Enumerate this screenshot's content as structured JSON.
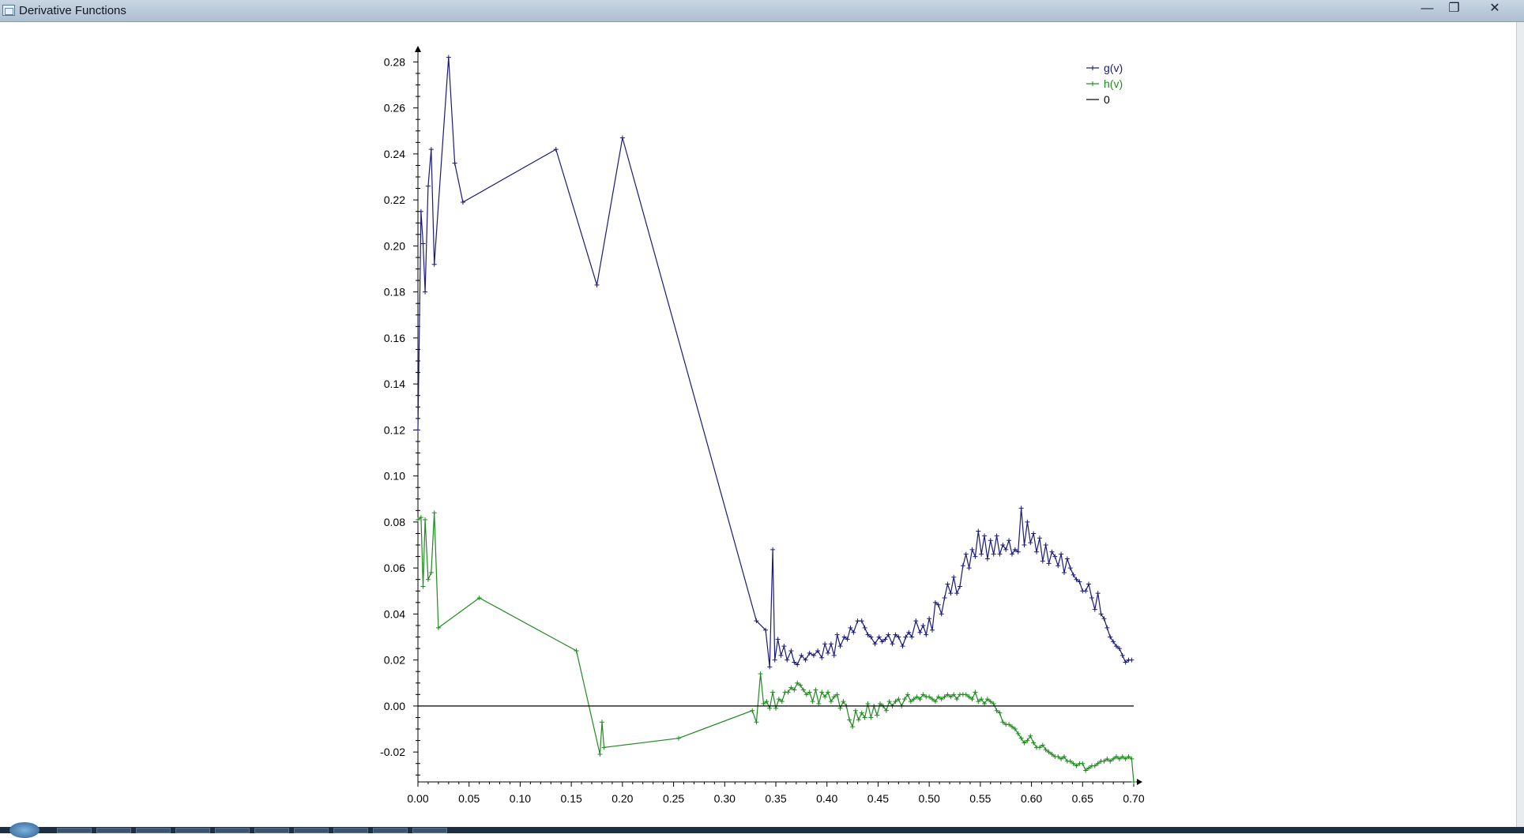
{
  "window": {
    "title": "Derivative Functions",
    "minimize_label": "—",
    "restore_label": "❐",
    "close_label": "✕"
  },
  "chart_data": {
    "type": "line",
    "title": "",
    "xlabel": "",
    "ylabel": "",
    "xlim": [
      0.0,
      0.7
    ],
    "ylim": [
      -0.033,
      0.287
    ],
    "x_ticks": [
      "0.00",
      "0.05",
      "0.10",
      "0.15",
      "0.20",
      "0.25",
      "0.30",
      "0.35",
      "0.40",
      "0.45",
      "0.50",
      "0.55",
      "0.60",
      "0.65",
      "0.70"
    ],
    "y_ticks": [
      "-0.02",
      "0.00",
      "0.02",
      "0.04",
      "0.06",
      "0.08",
      "0.10",
      "0.12",
      "0.14",
      "0.16",
      "0.18",
      "0.20",
      "0.22",
      "0.24",
      "0.26",
      "0.28"
    ],
    "legend_position": "top-right",
    "legend": [
      {
        "label": "g(v)",
        "color": "#1a1a7a"
      },
      {
        "label": "h(v)",
        "color": "#1f8a1f"
      },
      {
        "label": "0",
        "color": "#000000"
      }
    ],
    "series": [
      {
        "name": "g(v)",
        "color": "#1a1a7a",
        "x": [
          0.0,
          0.003,
          0.005,
          0.007,
          0.01,
          0.013,
          0.016,
          0.03,
          0.036,
          0.044,
          0.135,
          0.175,
          0.2,
          0.331,
          0.34,
          0.344,
          0.347,
          0.349,
          0.352,
          0.355,
          0.358,
          0.361,
          0.365,
          0.368,
          0.371,
          0.375,
          0.379,
          0.383,
          0.387,
          0.391,
          0.395,
          0.398,
          0.401,
          0.404,
          0.407,
          0.41,
          0.413,
          0.417,
          0.42,
          0.423,
          0.426,
          0.43,
          0.434,
          0.437,
          0.44,
          0.443,
          0.447,
          0.451,
          0.454,
          0.457,
          0.46,
          0.464,
          0.467,
          0.47,
          0.474,
          0.477,
          0.48,
          0.483,
          0.487,
          0.491,
          0.494,
          0.497,
          0.5,
          0.503,
          0.506,
          0.509,
          0.512,
          0.515,
          0.518,
          0.521,
          0.524,
          0.527,
          0.53,
          0.533,
          0.536,
          0.539,
          0.542,
          0.545,
          0.548,
          0.551,
          0.554,
          0.557,
          0.56,
          0.563,
          0.566,
          0.569,
          0.572,
          0.575,
          0.578,
          0.581,
          0.584,
          0.587,
          0.59,
          0.593,
          0.596,
          0.599,
          0.602,
          0.605,
          0.608,
          0.611,
          0.614,
          0.617,
          0.62,
          0.623,
          0.626,
          0.629,
          0.632,
          0.635,
          0.638,
          0.641,
          0.644,
          0.647,
          0.65,
          0.653,
          0.656,
          0.659,
          0.662,
          0.665,
          0.668,
          0.671,
          0.674,
          0.677,
          0.68,
          0.683,
          0.686,
          0.689,
          0.692,
          0.695,
          0.698
        ],
        "y": [
          0.12,
          0.215,
          0.201,
          0.18,
          0.226,
          0.242,
          0.192,
          0.282,
          0.236,
          0.219,
          0.242,
          0.183,
          0.247,
          0.037,
          0.033,
          0.017,
          0.068,
          0.02,
          0.029,
          0.022,
          0.026,
          0.02,
          0.024,
          0.019,
          0.018,
          0.022,
          0.02,
          0.023,
          0.022,
          0.024,
          0.021,
          0.027,
          0.023,
          0.027,
          0.022,
          0.031,
          0.026,
          0.03,
          0.029,
          0.034,
          0.032,
          0.037,
          0.037,
          0.034,
          0.031,
          0.03,
          0.027,
          0.03,
          0.028,
          0.029,
          0.031,
          0.027,
          0.031,
          0.03,
          0.026,
          0.03,
          0.032,
          0.03,
          0.037,
          0.032,
          0.035,
          0.031,
          0.038,
          0.033,
          0.045,
          0.044,
          0.04,
          0.047,
          0.053,
          0.049,
          0.056,
          0.049,
          0.052,
          0.061,
          0.066,
          0.06,
          0.068,
          0.065,
          0.076,
          0.066,
          0.074,
          0.064,
          0.072,
          0.066,
          0.074,
          0.066,
          0.07,
          0.068,
          0.072,
          0.066,
          0.068,
          0.067,
          0.086,
          0.07,
          0.08,
          0.071,
          0.075,
          0.067,
          0.073,
          0.063,
          0.07,
          0.062,
          0.067,
          0.065,
          0.061,
          0.066,
          0.058,
          0.064,
          0.06,
          0.057,
          0.055,
          0.054,
          0.05,
          0.05,
          0.053,
          0.047,
          0.042,
          0.049,
          0.04,
          0.038,
          0.034,
          0.03,
          0.028,
          0.026,
          0.025,
          0.022,
          0.019,
          0.02,
          0.02
        ]
      },
      {
        "name": "h(v)",
        "color": "#1f8a1f",
        "x": [
          0.0,
          0.003,
          0.005,
          0.007,
          0.01,
          0.013,
          0.016,
          0.02,
          0.06,
          0.155,
          0.178,
          0.18,
          0.182,
          0.255,
          0.327,
          0.331,
          0.335,
          0.338,
          0.341,
          0.344,
          0.347,
          0.35,
          0.353,
          0.356,
          0.359,
          0.362,
          0.365,
          0.368,
          0.371,
          0.374,
          0.377,
          0.38,
          0.383,
          0.386,
          0.389,
          0.392,
          0.395,
          0.398,
          0.401,
          0.404,
          0.407,
          0.41,
          0.413,
          0.416,
          0.419,
          0.422,
          0.425,
          0.428,
          0.431,
          0.434,
          0.437,
          0.44,
          0.443,
          0.446,
          0.449,
          0.452,
          0.455,
          0.458,
          0.461,
          0.464,
          0.467,
          0.47,
          0.473,
          0.476,
          0.479,
          0.482,
          0.485,
          0.488,
          0.491,
          0.494,
          0.497,
          0.5,
          0.503,
          0.506,
          0.509,
          0.512,
          0.515,
          0.518,
          0.521,
          0.524,
          0.527,
          0.53,
          0.533,
          0.536,
          0.539,
          0.542,
          0.545,
          0.548,
          0.551,
          0.554,
          0.557,
          0.56,
          0.563,
          0.566,
          0.569,
          0.572,
          0.575,
          0.578,
          0.581,
          0.584,
          0.587,
          0.59,
          0.593,
          0.596,
          0.599,
          0.602,
          0.605,
          0.608,
          0.611,
          0.614,
          0.617,
          0.62,
          0.623,
          0.626,
          0.629,
          0.632,
          0.635,
          0.638,
          0.641,
          0.644,
          0.647,
          0.65,
          0.653,
          0.656,
          0.659,
          0.662,
          0.665,
          0.668,
          0.671,
          0.674,
          0.677,
          0.68,
          0.683,
          0.686,
          0.689,
          0.692,
          0.695,
          0.698,
          0.7
        ],
        "y": [
          0.081,
          0.082,
          0.052,
          0.081,
          0.055,
          0.058,
          0.084,
          0.034,
          0.047,
          0.024,
          -0.021,
          -0.007,
          -0.018,
          -0.014,
          -0.002,
          -0.007,
          0.014,
          0.001,
          0.002,
          -0.001,
          0.006,
          -0.001,
          0.003,
          0.002,
          0.006,
          0.006,
          0.008,
          0.007,
          0.01,
          0.009,
          0.007,
          0.005,
          0.006,
          0.002,
          0.007,
          0.001,
          0.006,
          0.004,
          0.006,
          0.002,
          0.004,
          0.005,
          -0.001,
          0.002,
          0.0,
          -0.006,
          -0.009,
          -0.002,
          -0.006,
          -0.003,
          -0.005,
          0.001,
          -0.005,
          0.0,
          -0.004,
          0.001,
          0.0,
          -0.002,
          0.002,
          0.0,
          0.002,
          0.003,
          0.0,
          0.003,
          0.005,
          0.002,
          0.003,
          0.004,
          0.003,
          0.005,
          0.004,
          0.004,
          0.003,
          0.002,
          0.004,
          0.003,
          0.004,
          0.005,
          0.004,
          0.005,
          0.003,
          0.005,
          0.005,
          0.005,
          0.004,
          0.003,
          0.006,
          0.002,
          0.003,
          0.001,
          0.003,
          0.002,
          0.001,
          -0.002,
          -0.003,
          -0.007,
          -0.008,
          -0.008,
          -0.009,
          -0.01,
          -0.012,
          -0.014,
          -0.016,
          -0.015,
          -0.013,
          -0.016,
          -0.018,
          -0.018,
          -0.017,
          -0.019,
          -0.02,
          -0.021,
          -0.022,
          -0.022,
          -0.023,
          -0.022,
          -0.024,
          -0.024,
          -0.025,
          -0.026,
          -0.025,
          -0.025,
          -0.028,
          -0.027,
          -0.026,
          -0.026,
          -0.025,
          -0.024,
          -0.024,
          -0.023,
          -0.024,
          -0.023,
          -0.022,
          -0.023,
          -0.022,
          -0.023,
          -0.022,
          -0.023,
          -0.033
        ]
      },
      {
        "name": "0",
        "color": "#000000",
        "x": [
          0.0,
          0.7
        ],
        "y": [
          0.0,
          0.0
        ]
      }
    ]
  }
}
